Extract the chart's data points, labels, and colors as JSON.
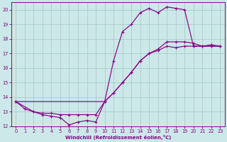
{
  "bg_color": "#cce8e8",
  "line_color": "#880088",
  "grid_color": "#aacccc",
  "xlabel": "Windchill (Refroidissement éolien,°C)",
  "xlim": [
    -0.5,
    23.5
  ],
  "ylim": [
    12,
    20.5
  ],
  "xticks": [
    0,
    1,
    2,
    3,
    4,
    5,
    6,
    7,
    8,
    9,
    10,
    11,
    12,
    13,
    14,
    15,
    16,
    17,
    18,
    19,
    20,
    21,
    22,
    23
  ],
  "yticks": [
    12,
    13,
    14,
    15,
    16,
    17,
    18,
    19,
    20
  ],
  "line1_x": [
    0,
    1,
    2,
    3,
    4,
    5,
    6,
    7,
    8,
    9,
    10,
    11,
    12,
    13,
    14,
    15,
    16,
    17,
    18,
    19,
    20,
    21,
    22,
    23
  ],
  "line1_y": [
    13.7,
    13.2,
    13.0,
    12.8,
    12.7,
    12.6,
    12.1,
    12.3,
    12.4,
    12.3,
    13.7,
    16.5,
    18.5,
    19.0,
    19.8,
    20.1,
    19.8,
    20.2,
    20.1,
    20.0,
    17.5,
    17.5,
    17.6,
    17.5
  ],
  "line2_x": [
    0,
    2,
    3,
    4,
    5,
    6,
    7,
    8,
    9,
    10,
    11,
    12,
    13,
    14,
    15,
    16,
    17,
    18,
    19,
    20,
    21,
    22,
    23
  ],
  "line2_y": [
    13.7,
    13.0,
    12.9,
    12.9,
    12.8,
    12.8,
    12.8,
    12.8,
    12.8,
    13.7,
    14.3,
    15.0,
    15.7,
    16.5,
    17.0,
    17.2,
    17.5,
    17.4,
    17.5,
    17.5,
    17.5,
    17.5,
    17.5
  ],
  "line3_x": [
    0,
    10,
    11,
    12,
    13,
    14,
    15,
    16,
    17,
    18,
    19,
    20,
    21,
    22,
    23
  ],
  "line3_y": [
    13.7,
    13.7,
    14.3,
    15.0,
    15.7,
    16.5,
    17.0,
    17.3,
    17.8,
    17.8,
    17.8,
    17.7,
    17.5,
    17.5,
    17.5
  ]
}
